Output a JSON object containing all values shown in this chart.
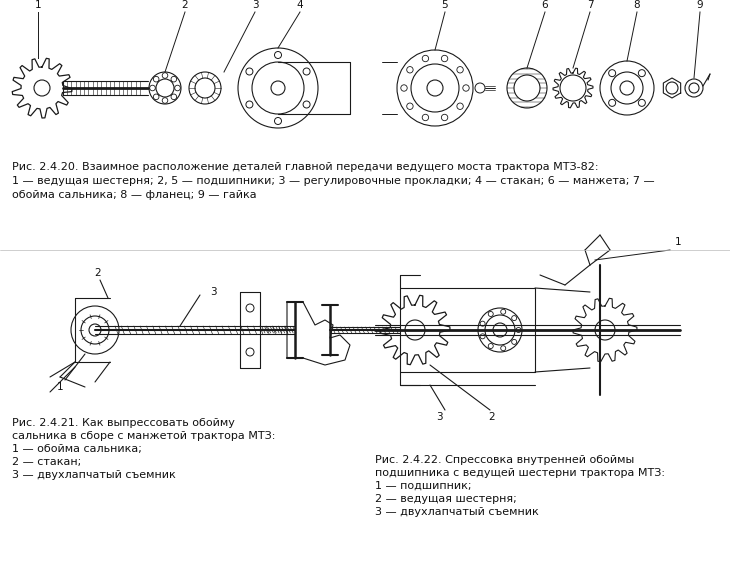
{
  "bg_color": "#ffffff",
  "fig_width": 7.3,
  "fig_height": 5.77,
  "dpi": 100,
  "caption1_line1_bold": "Рис. 2.4.20.",
  "caption1_line1_rest": " Взаимное расположение деталей главной передачи ведущего моста трактора МТЗ-82:",
  "caption1_line2": "1 — ведущая шестерня; 2, 5 — подшипники; 3 — регулировочные прокладки; 4 — стакан; 6 — манжета; 7 —",
  "caption1_line3": "обойма сальника; 8 — фланец; 9 — гайка",
  "caption2_line1_bold": "Рис. 2.4.21.",
  "caption2_line1_rest": " Как выпрессовать обойму",
  "caption2_line2": "сальника в сборе с манжетой трактора МТЗ:",
  "caption2_items": [
    "1 — обойма сальника;",
    "2 — стакан;",
    "3 — двухлапчатый съемник"
  ],
  "caption3_line1_bold": "Рис. 2.4.22.",
  "caption3_line1_rest": " Спрессовка внутренней обоймы",
  "caption3_line2": "подшипника с ведущей шестерни трактора МТЗ:",
  "caption3_items": [
    "1 — подшипник;",
    "2 — ведущая шестерня;",
    "3 — двухлапчатый съемник"
  ],
  "line_color": "#1a1a1a",
  "text_color": "#111111",
  "font_size": 8.0
}
